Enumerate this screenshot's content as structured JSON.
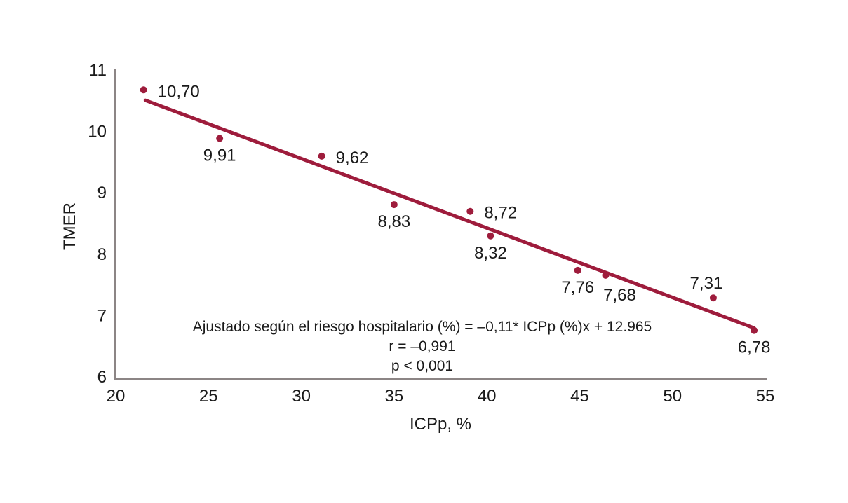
{
  "chart_data": {
    "type": "scatter",
    "xlabel": "ICPp, %",
    "ylabel": "TMER",
    "xlim": [
      20,
      55
    ],
    "ylim": [
      6,
      11
    ],
    "xticks": [
      "20",
      "25",
      "30",
      "35",
      "40",
      "45",
      "50",
      "55"
    ],
    "yticks": [
      "6",
      "7",
      "8",
      "9",
      "10",
      "11"
    ],
    "grid": false,
    "colors": {
      "series": "#9e1c3c",
      "axis": "#8c8585"
    },
    "points": [
      {
        "x": 21.5,
        "y": 10.7,
        "label": "10,70",
        "label_pos": "right"
      },
      {
        "x": 25.6,
        "y": 9.91,
        "label": "9,91",
        "label_pos": "below"
      },
      {
        "x": 31.1,
        "y": 9.62,
        "label": "9,62",
        "label_pos": "right"
      },
      {
        "x": 35.0,
        "y": 8.83,
        "label": "8,83",
        "label_pos": "below"
      },
      {
        "x": 39.1,
        "y": 8.72,
        "label": "8,72",
        "label_pos": "right"
      },
      {
        "x": 40.2,
        "y": 8.32,
        "label": "8,32",
        "label_pos": "below"
      },
      {
        "x": 44.9,
        "y": 7.76,
        "label": "7,76",
        "label_pos": "below"
      },
      {
        "x": 46.4,
        "y": 7.68,
        "label": "7,68",
        "label_pos": "below-right"
      },
      {
        "x": 52.2,
        "y": 7.31,
        "label": "7,31",
        "label_pos": "above"
      },
      {
        "x": 54.4,
        "y": 6.78,
        "label": "6,78",
        "label_pos": "below"
      }
    ],
    "regression_line": {
      "x": [
        21.6,
        54.4
      ],
      "y": [
        10.53,
        6.82
      ]
    },
    "annotations": [
      "Ajustado según el riesgo hospitalario (%) = –0,11* ICPp (%)x + 12.965",
      "r = –0,991",
      "p < 0,001"
    ]
  }
}
